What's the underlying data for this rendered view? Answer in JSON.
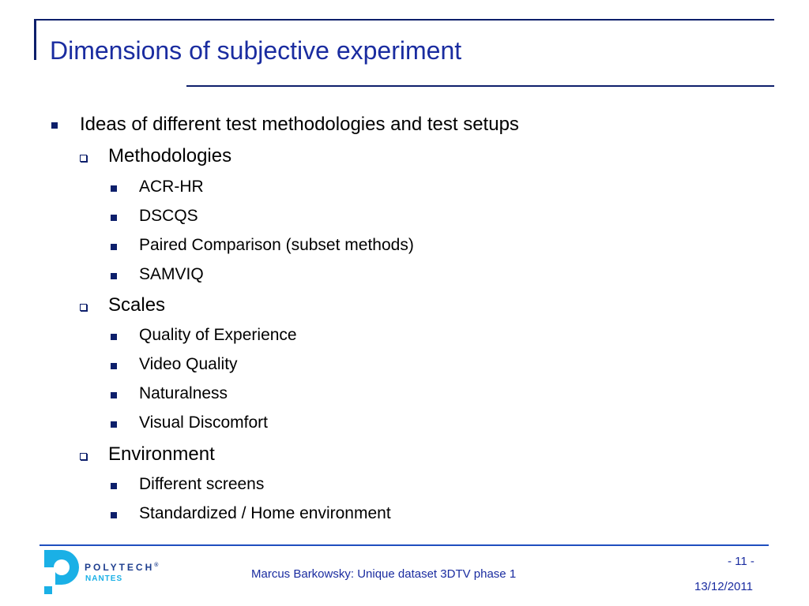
{
  "slide": {
    "title": "Dimensions of subjective experiment",
    "bullet": "Ideas of different test methodologies and test setups",
    "groups": [
      {
        "label": "Methodologies",
        "items": [
          "ACR-HR",
          "DSCQS",
          "Paired Comparison (subset methods)",
          "SAMVIQ"
        ]
      },
      {
        "label": "Scales",
        "items": [
          "Quality of Experience",
          "Video Quality",
          "Naturalness",
          "Visual Discomfort"
        ]
      },
      {
        "label": "Environment",
        "items": [
          "Different screens",
          "Standardized / Home environment"
        ]
      }
    ]
  },
  "footer": {
    "logo_name": "POLYTECH",
    "logo_reg": "®",
    "logo_sub": "NANTES",
    "text": "Marcus Barkowsky: Unique dataset 3DTV phase 1",
    "page": "- 11 -",
    "date": "13/12/2011"
  },
  "colors": {
    "title": "#1a2ca0",
    "rule": "#0d1f6b",
    "logo_blue": "#1f3f8f",
    "logo_cyan": "#1ab0e6"
  }
}
